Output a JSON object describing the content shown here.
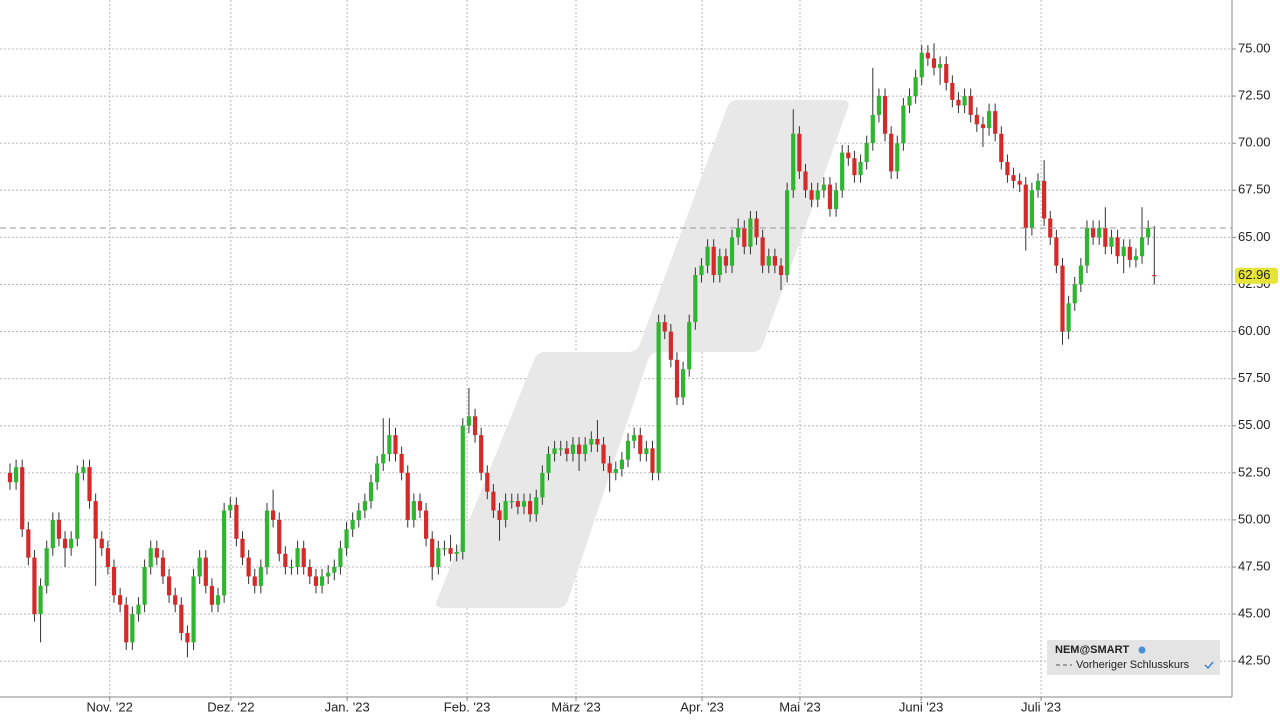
{
  "chart_data": {
    "type": "candlestick",
    "symbol": "NEM@SMART",
    "legend_label": "Vorheriger Schlusskurs",
    "previous_close": 65.5,
    "last_price": 62.96,
    "last_price_label": "62.96",
    "up_color": "#2fb52f",
    "down_color": "#d42a2a",
    "grid": true,
    "ylim": [
      40.6,
      77.6
    ],
    "yticks": [
      {
        "value": 42.5,
        "label": "42.50"
      },
      {
        "value": 45,
        "label": "45.00"
      },
      {
        "value": 47.5,
        "label": "47.50"
      },
      {
        "value": 50,
        "label": "50.00"
      },
      {
        "value": 52.5,
        "label": "52.50"
      },
      {
        "value": 55,
        "label": "55.00"
      },
      {
        "value": 57.5,
        "label": "57.50"
      },
      {
        "value": 60,
        "label": "60.00"
      },
      {
        "value": 62.5,
        "label": "62.50"
      },
      {
        "value": 65,
        "label": "65.00"
      },
      {
        "value": 67.5,
        "label": "67.50"
      },
      {
        "value": 70,
        "label": "70.00"
      },
      {
        "value": 72.5,
        "label": "72.50"
      },
      {
        "value": 75,
        "label": "75.00"
      }
    ],
    "xlim": [
      -1.63,
      199.7
    ],
    "xticks": [
      {
        "value": 16.3,
        "label": "Nov. '22"
      },
      {
        "value": 36.1,
        "label": "Dez. '22"
      },
      {
        "value": 55.1,
        "label": "Jan. '23"
      },
      {
        "value": 74.7,
        "label": "Feb. '23"
      },
      {
        "value": 92.5,
        "label": "März '23"
      },
      {
        "value": 113.1,
        "label": "Apr. '23"
      },
      {
        "value": 129.1,
        "label": "Mai '23"
      },
      {
        "value": 148.9,
        "label": "Juni '23"
      },
      {
        "value": 168.5,
        "label": "Juli '23"
      }
    ],
    "open": [
      52.5,
      52,
      52.8,
      49.5,
      48,
      45,
      46.5,
      48.5,
      50,
      49,
      48.5,
      49,
      52.5,
      52.8,
      51,
      49,
      48.5,
      47.5,
      46,
      45.5,
      43.5,
      45,
      45.5,
      47.5,
      48.5,
      48,
      47,
      46,
      45.5,
      44,
      43.5,
      47,
      48,
      46.5,
      45.5,
      46,
      50.5,
      50.8,
      49,
      48,
      47,
      46.5,
      47.5,
      50.5,
      50,
      48.2,
      47.5,
      47.5,
      48.5,
      47.5,
      47,
      46.5,
      47,
      47.2,
      47.5,
      48.5,
      49.5,
      50,
      50.5,
      51,
      52,
      53,
      53.5,
      54.5,
      53.5,
      52.5,
      50,
      51,
      50.5,
      49,
      47.5,
      48.5,
      48.5,
      48.2,
      48.3,
      55,
      55.5,
      54.5,
      52.5,
      51.5,
      50.5,
      50,
      51,
      51,
      50.7,
      51,
      50.3,
      51.2,
      52.5,
      53.5,
      53.8,
      53.8,
      53.5,
      54,
      53.5,
      54,
      54.3,
      54,
      53,
      52.5,
      52.7,
      53.2,
      54.2,
      54.5,
      53.5,
      53.8,
      52.5,
      60.5,
      60,
      58.5,
      56.5,
      58,
      60.5,
      63,
      63.5,
      64.5,
      63,
      64,
      63.5,
      65,
      65.5,
      64.5,
      66,
      65,
      63.5,
      64,
      63.5,
      63,
      67.5,
      70.5,
      68.5,
      67.5,
      67,
      67.5,
      67.8,
      66.5,
      67.5,
      69.5,
      69.2,
      68.3,
      69,
      70,
      71.5,
      72.5,
      70.5,
      68.5,
      70,
      72,
      72.5,
      73.5,
      74.8,
      74.5,
      74,
      74.2,
      73.2,
      72.3,
      72,
      72.5,
      71.5,
      71,
      70.8,
      71.7,
      70.5,
      69,
      68.3,
      68,
      67.8,
      65.5,
      67.5,
      68,
      66,
      65,
      63.5,
      60,
      61.5,
      62.5,
      63.5,
      65.5,
      65,
      65.5,
      64.5,
      65,
      64,
      64.5,
      63.8,
      64,
      65,
      63
    ],
    "high": [
      53,
      53.2,
      53.2,
      49.9,
      48.4,
      46.9,
      48.9,
      50.4,
      50.4,
      49.4,
      49.4,
      52.9,
      53.2,
      53.2,
      51.4,
      49.4,
      48.9,
      47.9,
      46.4,
      45.9,
      45.4,
      45.9,
      47.9,
      48.9,
      48.9,
      48.4,
      47.4,
      46.4,
      45.9,
      44.4,
      47.4,
      48.4,
      48.4,
      46.9,
      46.4,
      50.9,
      51.2,
      51.2,
      49.4,
      48.4,
      47.4,
      47.9,
      50.9,
      51.6,
      50.4,
      48.6,
      47.9,
      48.9,
      48.9,
      47.9,
      47.4,
      47.4,
      47.6,
      47.9,
      48.9,
      49.9,
      50.4,
      50.9,
      51.4,
      52.4,
      53.4,
      55.4,
      55.4,
      54.9,
      53.9,
      52.9,
      51.4,
      51.4,
      50.9,
      49.4,
      48.9,
      48.9,
      49.2,
      48.7,
      55.4,
      57,
      55.9,
      54.9,
      52.9,
      51.9,
      50.9,
      51.4,
      51.4,
      51.4,
      51.4,
      51.4,
      51.6,
      52.9,
      53.9,
      54.2,
      54.2,
      54.2,
      54.4,
      54.4,
      54.4,
      54.7,
      55.3,
      54.4,
      53.4,
      53.1,
      53.6,
      54.6,
      54.9,
      54.9,
      54.2,
      54.2,
      60.9,
      60.9,
      60.4,
      58.9,
      58.4,
      60.9,
      63.4,
      63.9,
      64.9,
      64.9,
      64.4,
      64.4,
      65.4,
      66,
      65.9,
      66.4,
      66.4,
      65.4,
      64.4,
      64.4,
      63.9,
      67.9,
      71.8,
      70.9,
      68.9,
      67.9,
      67.9,
      68.2,
      68.2,
      67.9,
      69.9,
      69.9,
      69.6,
      69.4,
      70.4,
      74,
      72.9,
      72.9,
      70.9,
      70.4,
      72.4,
      72.9,
      73.9,
      75.2,
      75.2,
      75.3,
      74.6,
      74.6,
      73.6,
      72.7,
      72.9,
      72.9,
      71.9,
      71.4,
      72.1,
      72.1,
      70.9,
      69.4,
      68.7,
      68.4,
      68.2,
      67.9,
      68.4,
      69.1,
      66.4,
      65.4,
      63.9,
      61.9,
      62.9,
      63.9,
      65.9,
      65.9,
      65.9,
      66.6,
      65.4,
      65.4,
      64.9,
      64.9,
      64.4,
      66.6,
      65.9,
      65.6
    ],
    "low": [
      51.6,
      51.6,
      49.1,
      47.6,
      44.6,
      43.5,
      46.1,
      48.1,
      48.6,
      47.5,
      48.1,
      48.6,
      52.1,
      50.6,
      46.5,
      48.1,
      47.1,
      45.6,
      45.1,
      43.1,
      43.1,
      44.6,
      45.1,
      47.1,
      47.6,
      46.6,
      45.6,
      45.1,
      43.6,
      42.7,
      43.1,
      46.6,
      46.1,
      45.1,
      45.1,
      45.6,
      50.1,
      48.6,
      47.6,
      46.6,
      46.1,
      46.1,
      47.1,
      49.6,
      47.8,
      47.1,
      47.1,
      47.1,
      47.1,
      46.6,
      46.1,
      46.1,
      46.6,
      46.8,
      47.1,
      48.1,
      49.1,
      49.6,
      50.1,
      50.6,
      51.6,
      52.6,
      53.1,
      53.1,
      52.1,
      49.6,
      49.6,
      50.1,
      48.6,
      46.8,
      47.1,
      48.1,
      47.8,
      47.8,
      47.9,
      54.6,
      54.1,
      52.1,
      51.1,
      50.1,
      48.9,
      49.6,
      50.6,
      50.3,
      50.3,
      49.9,
      49.9,
      50.8,
      52.1,
      53.1,
      53.4,
      53.1,
      53.1,
      52.6,
      53.1,
      53.6,
      53.6,
      52.6,
      51.5,
      52.1,
      52.3,
      52.8,
      53.8,
      53.1,
      53.1,
      52.1,
      52.1,
      59.6,
      58.1,
      56.1,
      56.1,
      57.6,
      60.1,
      62.6,
      63.1,
      62.6,
      62.6,
      63.1,
      63.1,
      64.6,
      64.1,
      64.1,
      64.6,
      63.1,
      63.1,
      63.1,
      62.2,
      62.6,
      67.1,
      68.1,
      67.1,
      66.6,
      66.6,
      67.1,
      66.1,
      66.1,
      67.1,
      68.8,
      67.9,
      67.9,
      68.6,
      69.6,
      71.1,
      70.1,
      68.1,
      68.1,
      69.6,
      71.6,
      72.1,
      73.1,
      74.1,
      73.6,
      73.1,
      72.8,
      71.9,
      71.6,
      71.6,
      71.1,
      70.6,
      69.8,
      70.4,
      70.1,
      68.6,
      67.9,
      67.6,
      67.4,
      64.3,
      65.1,
      67.1,
      65.6,
      64.6,
      63.1,
      59.3,
      59.6,
      61.1,
      62.1,
      63.1,
      64.6,
      64.6,
      64.1,
      64.1,
      63.6,
      63.1,
      63.4,
      63.4,
      63.6,
      64.6,
      62.5
    ],
    "close": [
      52,
      52.8,
      49.5,
      48,
      45,
      46.5,
      48.5,
      50,
      49,
      48.5,
      49,
      52.5,
      52.8,
      51,
      49,
      48.5,
      47.5,
      46,
      45.5,
      43.5,
      45,
      45.5,
      47.5,
      48.5,
      48,
      47,
      46,
      45.5,
      44,
      43.5,
      47,
      48,
      46.5,
      45.5,
      46,
      50.5,
      50.8,
      49,
      48,
      47,
      46.5,
      47.5,
      50.5,
      50,
      48.2,
      47.5,
      47.5,
      48.5,
      47.5,
      47,
      46.5,
      47,
      47.2,
      47.5,
      48.5,
      49.5,
      50,
      50.5,
      51,
      52,
      53,
      53.5,
      54.5,
      53.5,
      52.5,
      50,
      51,
      50.5,
      49,
      47.5,
      48.5,
      48.5,
      48.2,
      48.3,
      55,
      55.5,
      54.5,
      52.5,
      51.5,
      50.5,
      50,
      51,
      51,
      50.7,
      51,
      50.3,
      51.2,
      52.5,
      53.5,
      53.8,
      53.8,
      53.5,
      54,
      53.5,
      54,
      54.3,
      54,
      53,
      52.5,
      52.7,
      53.2,
      54.2,
      54.5,
      53.5,
      53.8,
      52.5,
      60.5,
      60,
      58.5,
      56.5,
      58,
      60.5,
      63,
      63.5,
      64.5,
      63,
      64,
      63.5,
      65,
      65.5,
      64.5,
      66,
      65,
      63.5,
      64,
      63.5,
      63,
      67.5,
      70.5,
      68.5,
      67.5,
      67,
      67.5,
      67.8,
      66.5,
      67.5,
      69.5,
      69.2,
      68.3,
      69,
      70,
      71.5,
      72.5,
      70.5,
      68.5,
      70,
      72,
      72.5,
      73.5,
      74.8,
      74.5,
      74,
      74.2,
      73.2,
      72.3,
      72,
      72.5,
      71.5,
      71,
      70.8,
      71.7,
      70.5,
      69,
      68.3,
      68,
      67.8,
      65.5,
      67.5,
      68,
      66,
      65,
      63.5,
      60,
      61.5,
      62.5,
      63.5,
      65.5,
      65,
      65.5,
      64.5,
      65,
      64,
      64.5,
      63.8,
      64,
      65,
      65.5,
      62.96
    ]
  }
}
